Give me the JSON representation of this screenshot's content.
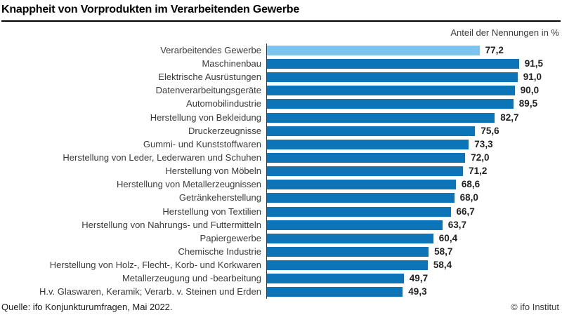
{
  "header": {
    "title": "Knappheit von Vorprodukten im Verarbeitenden Gewerbe",
    "axis_note": "Anteil der Nennungen in %"
  },
  "footer": {
    "source": "Quelle: ifo Konjunkturumfragen, Mai 2022.",
    "copyright": "© ifo Institut"
  },
  "colors": {
    "bar_default": "#0e74b8",
    "bar_highlight": "#7cc4ef",
    "axis_line": "#3c3c3c"
  },
  "chart_data": {
    "type": "bar",
    "orientation": "horizontal",
    "title": "Knappheit von Vorprodukten im Verarbeitenden Gewerbe",
    "value_axis_label": "Anteil der Nennungen in %",
    "xlim": [
      0,
      100
    ],
    "grid": false,
    "legend": "none",
    "highlight_index": 0,
    "decimal_separator": ",",
    "categories": [
      "Verarbeitendes Gewerbe",
      "Maschinenbau",
      "Elektrische Ausrüstungen",
      "Datenverarbeitungsgeräte",
      "Automobilindustrie",
      "Herstellung von Bekleidung",
      "Druckerzeugnisse",
      "Gummi- und Kunststoffwaren",
      "Herstellung von Leder, Lederwaren und Schuhen",
      "Herstellung von Möbeln",
      "Herstellung von Metallerzeugnissen",
      "Getränkeherstellung",
      "Herstellung von Textilien",
      "Herstellung von Nahrungs- und Futtermitteln",
      "Papiergewerbe",
      "Chemische Industrie",
      "Herstellung von Holz-, Flecht-, Korb- und Korkwaren",
      "Metallerzeugung und -bearbeitung",
      "H.v. Glaswaren, Keramik; Verarb. v. Steinen und Erden"
    ],
    "values": [
      77.2,
      91.5,
      91.0,
      90.0,
      89.5,
      82.7,
      75.6,
      73.3,
      72.0,
      71.2,
      68.6,
      68.0,
      66.7,
      63.7,
      60.4,
      58.7,
      58.4,
      49.7,
      49.3
    ],
    "value_labels": [
      "77,2",
      "91,5",
      "91,0",
      "90,0",
      "89,5",
      "82,7",
      "75,6",
      "73,3",
      "72,0",
      "71,2",
      "68,6",
      "68,0",
      "66,7",
      "63,7",
      "60,4",
      "58,7",
      "58,4",
      "49,7",
      "49,3"
    ]
  }
}
